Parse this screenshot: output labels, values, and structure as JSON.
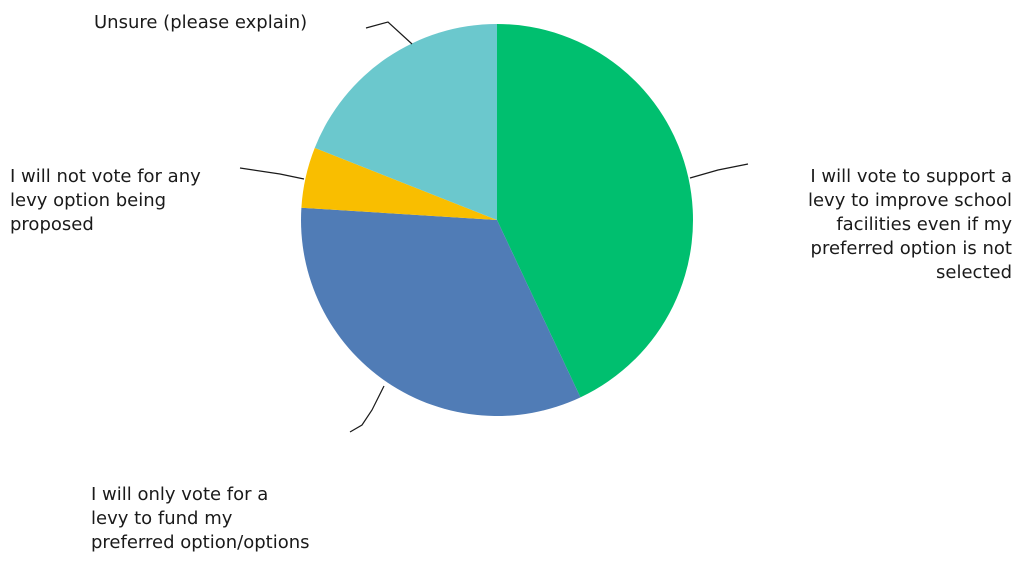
{
  "chart_data": {
    "type": "pie",
    "title": "",
    "start_angle_deg": 0,
    "direction": "clockwise",
    "slices": [
      {
        "label_lines": [
          "I will vote to support a",
          "levy to improve school",
          "facilities even if my",
          "preferred option is not",
          "selected"
        ],
        "value": 43,
        "color": "#00bf6f"
      },
      {
        "label_lines": [
          "I will only vote for a",
          "levy to fund my",
          "preferred option/options"
        ],
        "value": 33,
        "color": "#507cb6"
      },
      {
        "label_lines": [
          "I will not vote for any",
          "levy option being",
          "proposed"
        ],
        "value": 5,
        "color": "#f9be00"
      },
      {
        "label_lines": [
          "Unsure (please explain)"
        ],
        "value": 19,
        "color": "#6bc8cd"
      }
    ]
  }
}
